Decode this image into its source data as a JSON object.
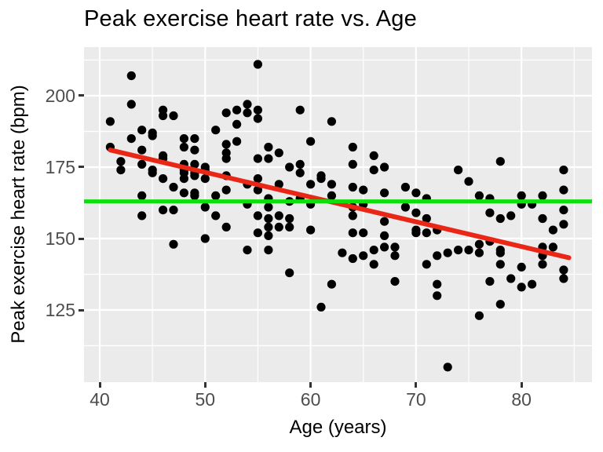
{
  "chart_data": {
    "type": "scatter",
    "title": "Peak exercise heart rate vs. Age",
    "xlabel": "Age (years)",
    "ylabel": "Peak exercise heart rate (bpm)",
    "xlim": [
      38.51,
      86.69
    ],
    "ylim": [
      99.73,
      217.03
    ],
    "x_ticks": [
      40,
      50,
      60,
      70,
      80
    ],
    "y_ticks": [
      125,
      150,
      175,
      200
    ],
    "x_minor_ticks": [
      45,
      55,
      65,
      75,
      85
    ],
    "y_minor_ticks": [
      112.5,
      137.5,
      162.5,
      187.5,
      212.5
    ],
    "grid": true,
    "legend": "none",
    "points": [
      [
        43,
        207
      ],
      [
        41,
        191
      ],
      [
        43,
        197
      ],
      [
        46,
        195
      ],
      [
        47,
        193
      ],
      [
        46,
        193
      ],
      [
        52,
        194
      ],
      [
        53,
        195
      ],
      [
        54,
        197
      ],
      [
        54,
        194
      ],
      [
        55,
        195
      ],
      [
        55,
        192
      ],
      [
        53,
        190
      ],
      [
        55,
        211
      ],
      [
        51,
        188
      ],
      [
        44,
        188
      ],
      [
        45,
        187
      ],
      [
        45,
        186
      ],
      [
        43,
        185
      ],
      [
        48,
        185
      ],
      [
        49,
        185
      ],
      [
        41,
        182
      ],
      [
        44,
        181
      ],
      [
        48,
        182
      ],
      [
        49,
        181
      ],
      [
        52,
        183
      ],
      [
        52,
        180
      ],
      [
        53,
        184
      ],
      [
        52,
        178
      ],
      [
        46,
        179
      ],
      [
        46,
        178
      ],
      [
        42,
        177
      ],
      [
        42,
        174
      ],
      [
        44,
        176
      ],
      [
        48,
        176
      ],
      [
        49,
        176
      ],
      [
        50,
        175
      ],
      [
        48,
        174
      ],
      [
        48,
        173
      ],
      [
        49,
        173
      ],
      [
        48,
        171
      ],
      [
        49,
        172
      ],
      [
        50,
        171
      ],
      [
        45,
        173
      ],
      [
        45,
        174
      ],
      [
        46,
        171
      ],
      [
        52,
        172
      ],
      [
        50,
        174
      ],
      [
        54,
        169
      ],
      [
        55,
        167
      ],
      [
        55,
        171
      ],
      [
        44,
        165
      ],
      [
        47,
        168
      ],
      [
        48,
        166
      ],
      [
        49,
        166
      ],
      [
        49,
        165
      ],
      [
        51,
        165
      ],
      [
        52,
        167
      ],
      [
        46,
        160
      ],
      [
        47,
        160
      ],
      [
        50,
        161
      ],
      [
        44,
        158
      ],
      [
        51,
        158
      ],
      [
        54,
        162
      ],
      [
        56,
        164
      ],
      [
        56,
        161
      ],
      [
        55,
        158
      ],
      [
        57,
        158
      ],
      [
        56,
        157
      ],
      [
        60,
        162
      ],
      [
        59,
        164
      ],
      [
        58,
        163
      ],
      [
        57,
        169
      ],
      [
        59,
        195
      ],
      [
        62,
        191
      ],
      [
        60,
        184
      ],
      [
        56,
        182
      ],
      [
        57,
        180
      ],
      [
        55,
        178
      ],
      [
        56,
        178
      ],
      [
        58,
        175
      ],
      [
        59,
        176
      ],
      [
        59,
        173
      ],
      [
        61,
        172
      ],
      [
        61,
        171
      ],
      [
        60,
        169
      ],
      [
        62,
        169
      ],
      [
        62,
        165
      ],
      [
        64,
        168
      ],
      [
        65,
        167
      ],
      [
        64,
        161
      ],
      [
        64,
        158
      ],
      [
        65,
        162
      ],
      [
        64,
        182
      ],
      [
        66,
        179
      ],
      [
        64,
        176
      ],
      [
        66,
        174
      ],
      [
        67,
        175
      ],
      [
        67,
        166
      ],
      [
        69,
        168
      ],
      [
        70,
        166
      ],
      [
        71,
        164
      ],
      [
        69,
        161
      ],
      [
        70,
        159
      ],
      [
        71,
        157
      ],
      [
        67,
        156
      ],
      [
        78,
        177
      ],
      [
        74,
        174
      ],
      [
        75,
        170
      ],
      [
        84,
        174
      ],
      [
        84,
        167
      ],
      [
        76,
        165
      ],
      [
        77,
        164
      ],
      [
        80,
        165
      ],
      [
        82,
        165
      ],
      [
        80,
        162
      ],
      [
        81,
        162
      ],
      [
        77,
        159
      ],
      [
        79,
        158
      ],
      [
        84,
        160
      ],
      [
        82,
        157
      ],
      [
        78,
        157
      ],
      [
        84,
        155
      ],
      [
        83,
        153
      ],
      [
        47,
        148
      ],
      [
        52,
        154
      ],
      [
        50,
        150
      ],
      [
        54,
        146
      ],
      [
        58,
        157
      ],
      [
        56,
        154
      ],
      [
        57,
        154
      ],
      [
        58,
        154
      ],
      [
        55,
        152
      ],
      [
        56,
        151
      ],
      [
        60,
        153
      ],
      [
        64,
        152
      ],
      [
        65,
        152
      ],
      [
        67,
        151
      ],
      [
        70,
        153
      ],
      [
        70,
        152
      ],
      [
        56,
        146
      ],
      [
        63,
        145
      ],
      [
        64,
        143
      ],
      [
        65,
        144
      ],
      [
        66,
        146
      ],
      [
        67,
        147
      ],
      [
        68,
        147
      ],
      [
        68,
        144
      ],
      [
        66,
        141
      ],
      [
        58,
        138
      ],
      [
        62,
        134
      ],
      [
        68,
        135
      ],
      [
        61,
        126
      ],
      [
        71,
        141
      ],
      [
        72,
        153
      ],
      [
        71,
        152
      ],
      [
        72,
        144
      ],
      [
        73,
        145
      ],
      [
        74,
        146
      ],
      [
        75,
        146
      ],
      [
        76,
        148
      ],
      [
        77,
        149
      ],
      [
        76,
        145
      ],
      [
        78,
        146
      ],
      [
        78,
        145
      ],
      [
        78,
        141
      ],
      [
        80,
        140
      ],
      [
        79,
        136
      ],
      [
        77,
        135
      ],
      [
        80,
        133
      ],
      [
        81,
        134
      ],
      [
        82,
        147
      ],
      [
        83,
        147
      ],
      [
        82,
        141
      ],
      [
        82,
        144
      ],
      [
        84,
        139
      ],
      [
        84,
        136
      ],
      [
        78,
        127
      ],
      [
        76,
        123
      ],
      [
        72,
        134
      ],
      [
        72,
        130
      ],
      [
        73,
        105
      ]
    ],
    "regression_line": {
      "x1": 41,
      "y1": 181,
      "x2": 84.5,
      "y2": 143.3,
      "color": "#ea2717"
    },
    "mean_line": {
      "y": 163,
      "color": "#0ce00c"
    },
    "styles": {
      "panel_bg": "#ebebeb",
      "grid_color": "#ffffff",
      "point_color": "#000000",
      "title_color": "#000000",
      "axis_title_color": "#000000",
      "tick_label_color": "#4d4d4d",
      "tick_mark_color": "#333333"
    }
  }
}
